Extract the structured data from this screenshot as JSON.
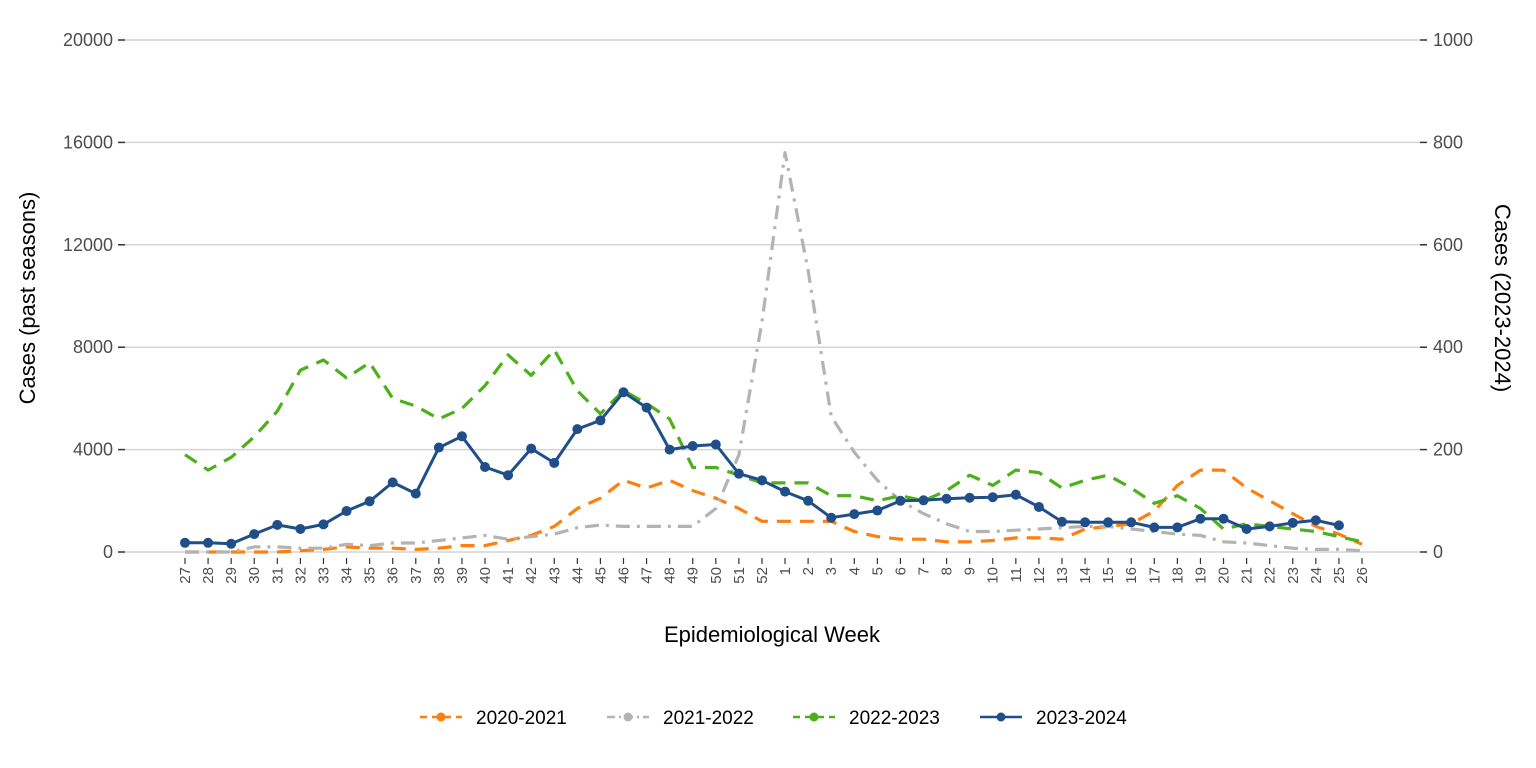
{
  "chart_data": {
    "type": "line",
    "xlabel": "Epidemiological Week",
    "ylabel_left": "Cases (past seasons)",
    "ylabel_right": "Cases (2023-2024)",
    "ylim_left": [
      0,
      20000
    ],
    "ylim_right": [
      0,
      1000
    ],
    "yticks_left": [
      "0",
      "4000",
      "8000",
      "12000",
      "16000",
      "20000"
    ],
    "yticks_right": [
      "0",
      "200",
      "400",
      "600",
      "800",
      "1000"
    ],
    "grid": "horizontal",
    "legend_position": "bottom",
    "categories": [
      "27",
      "28",
      "29",
      "30",
      "31",
      "32",
      "33",
      "34",
      "35",
      "36",
      "37",
      "38",
      "39",
      "40",
      "41",
      "42",
      "43",
      "44",
      "45",
      "46",
      "47",
      "48",
      "49",
      "50",
      "51",
      "52",
      "1",
      "2",
      "3",
      "4",
      "5",
      "6",
      "7",
      "8",
      "9",
      "10",
      "11",
      "12",
      "13",
      "14",
      "15",
      "16",
      "17",
      "18",
      "19",
      "20",
      "21",
      "22",
      "23",
      "24",
      "25",
      "26"
    ],
    "series": [
      {
        "name": "2020-2021",
        "axis": "left",
        "color": "#ff7f0e",
        "dash": "dashed",
        "values": [
          0,
          0,
          0,
          0,
          0,
          50,
          100,
          200,
          150,
          150,
          100,
          150,
          250,
          250,
          450,
          650,
          1000,
          1700,
          2100,
          2800,
          2500,
          2800,
          2400,
          2100,
          1700,
          1200,
          1200,
          1200,
          1200,
          800,
          600,
          500,
          500,
          400,
          400,
          450,
          550,
          550,
          500,
          900,
          1000,
          1100,
          1600,
          2600,
          3200,
          3200,
          2500,
          2000,
          1500,
          1000,
          700,
          300
        ]
      },
      {
        "name": "2021-2022",
        "axis": "left",
        "color": "#b3b3b3",
        "dash": "dashdot",
        "values": [
          0,
          0,
          0,
          200,
          200,
          150,
          150,
          300,
          250,
          350,
          350,
          450,
          550,
          650,
          500,
          600,
          700,
          950,
          1050,
          1000,
          1000,
          1000,
          1000,
          1700,
          3800,
          9000,
          15600,
          11000,
          5300,
          3900,
          2800,
          2000,
          1500,
          1100,
          800,
          800,
          850,
          900,
          950,
          1000,
          1000,
          900,
          800,
          700,
          650,
          400,
          350,
          250,
          150,
          100,
          100,
          50
        ]
      },
      {
        "name": "2022-2023",
        "axis": "left",
        "color": "#4daf1a",
        "dash": "dashed",
        "values": [
          3800,
          3200,
          3700,
          4500,
          5500,
          7100,
          7500,
          6800,
          7400,
          6000,
          5700,
          5200,
          5600,
          6500,
          7700,
          6900,
          7900,
          6300,
          5400,
          6300,
          5800,
          5200,
          3300,
          3300,
          3000,
          2700,
          2700,
          2700,
          2200,
          2200,
          2000,
          2200,
          2000,
          2400,
          3000,
          2600,
          3200,
          3100,
          2500,
          2800,
          3000,
          2500,
          1900,
          2200,
          1700,
          900,
          1100,
          1000,
          900,
          800,
          600,
          400
        ]
      },
      {
        "name": "2023-2024",
        "axis": "right",
        "color": "#1f4e89",
        "dash": "solid",
        "values": [
          18,
          18,
          16,
          35,
          53,
          45,
          54,
          80,
          99,
          136,
          114,
          204,
          226,
          166,
          150,
          202,
          174,
          240,
          257,
          312,
          282,
          200,
          207,
          210,
          153,
          140,
          118,
          100,
          67,
          74,
          81,
          100,
          101,
          104,
          106,
          107,
          112,
          88,
          59,
          58,
          58,
          58,
          48,
          48,
          65,
          65,
          45,
          50,
          57,
          62,
          52,
          null
        ]
      }
    ]
  }
}
